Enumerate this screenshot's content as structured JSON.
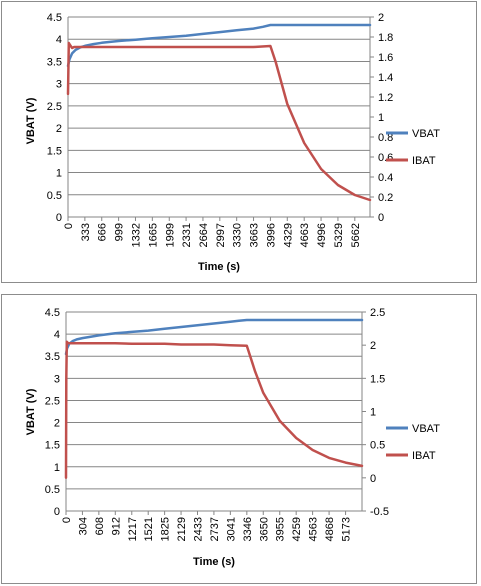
{
  "charts": [
    {
      "xlabel": "Time (s)",
      "ylabel": "VBAT (V)",
      "y_ticks": [
        "0",
        "0.5",
        "1",
        "1.5",
        "2",
        "2.5",
        "3",
        "3.5",
        "4",
        "4.5"
      ],
      "y2_ticks": [
        "0",
        "0.2",
        "0.4",
        "0.6",
        "0.8",
        "1",
        "1.2",
        "1.4",
        "1.6",
        "1.8",
        "2"
      ],
      "x_ticks": [
        "0",
        "333",
        "666",
        "999",
        "1332",
        "1665",
        "1999",
        "2331",
        "2664",
        "2997",
        "3330",
        "3663",
        "3996",
        "4329",
        "4663",
        "4996",
        "5329",
        "5662"
      ],
      "legend": [
        "VBAT",
        "IBAT"
      ]
    },
    {
      "xlabel": "Time (s)",
      "ylabel": "VBAT (V)",
      "y_ticks": [
        "0",
        "0.5",
        "1",
        "1.5",
        "2",
        "2.5",
        "3",
        "3.5",
        "4",
        "4.5"
      ],
      "y2_ticks": [
        "-0.5",
        "0",
        "0.5",
        "1",
        "1.5",
        "2",
        "2.5"
      ],
      "x_ticks": [
        "0",
        "304",
        "608",
        "912",
        "1217",
        "1521",
        "1825",
        "2129",
        "2433",
        "2737",
        "3041",
        "3346",
        "3650",
        "3955",
        "4259",
        "4563",
        "4868",
        "5173"
      ],
      "legend": [
        "VBAT",
        "IBAT"
      ]
    }
  ],
  "chart_data": [
    {
      "type": "line",
      "xlabel": "Time (s)",
      "ylabel": "VBAT (V)",
      "ylim": [
        0,
        4.5
      ],
      "y2lim": [
        0,
        2
      ],
      "xlim": [
        0,
        5962
      ],
      "grid": true,
      "legend_position": "right",
      "colors": {
        "VBAT": "#4f81bd",
        "IBAT": "#c0504d"
      },
      "series": [
        {
          "name": "VBAT",
          "axis": "left",
          "x": [
            0,
            30,
            80,
            150,
            250,
            333,
            500,
            666,
            999,
            1332,
            1665,
            1999,
            2331,
            2664,
            2997,
            3330,
            3663,
            3850,
            3996,
            4329,
            4663,
            4996,
            5329,
            5662,
            5962
          ],
          "y": [
            3.4,
            3.55,
            3.68,
            3.76,
            3.82,
            3.85,
            3.89,
            3.92,
            3.96,
            3.99,
            4.02,
            4.05,
            4.08,
            4.12,
            4.16,
            4.2,
            4.24,
            4.28,
            4.32,
            4.32,
            4.32,
            4.32,
            4.32,
            4.32,
            4.32
          ]
        },
        {
          "name": "IBAT",
          "axis": "right",
          "x": [
            0,
            15,
            40,
            80,
            120,
            333,
            666,
            999,
            1332,
            1665,
            1999,
            2331,
            2664,
            2997,
            3330,
            3663,
            3996,
            4100,
            4329,
            4663,
            4996,
            5329,
            5662,
            5962
          ],
          "y": [
            1.23,
            1.74,
            1.72,
            1.69,
            1.7,
            1.7,
            1.7,
            1.7,
            1.7,
            1.7,
            1.7,
            1.7,
            1.7,
            1.7,
            1.7,
            1.7,
            1.71,
            1.55,
            1.13,
            0.74,
            0.48,
            0.32,
            0.22,
            0.17
          ]
        }
      ]
    },
    {
      "type": "line",
      "xlabel": "Time (s)",
      "ylabel": "VBAT (V)",
      "ylim": [
        0,
        4.5
      ],
      "y2lim": [
        -0.5,
        2.5
      ],
      "xlim": [
        0,
        5477
      ],
      "grid": true,
      "legend_position": "right",
      "colors": {
        "VBAT": "#4f81bd",
        "IBAT": "#c0504d"
      },
      "series": [
        {
          "name": "VBAT",
          "axis": "left",
          "x": [
            0,
            20,
            60,
            120,
            200,
            304,
            608,
            912,
            1217,
            1521,
            1825,
            2129,
            2433,
            2737,
            3041,
            3200,
            3346,
            3650,
            3955,
            4259,
            4563,
            4868,
            5173,
            5477
          ],
          "y": [
            3.55,
            3.68,
            3.78,
            3.84,
            3.88,
            3.91,
            3.97,
            4.02,
            4.05,
            4.08,
            4.12,
            4.16,
            4.2,
            4.24,
            4.28,
            4.3,
            4.32,
            4.32,
            4.32,
            4.32,
            4.32,
            4.32,
            4.32,
            4.32
          ]
        },
        {
          "name": "IBAT",
          "axis": "right",
          "x": [
            0,
            5,
            15,
            40,
            304,
            608,
            912,
            1217,
            1521,
            1825,
            2129,
            2433,
            2737,
            3041,
            3346,
            3500,
            3650,
            3955,
            4259,
            4563,
            4868,
            5173,
            5477
          ],
          "y": [
            0.0,
            1.5,
            2.05,
            2.03,
            2.03,
            2.03,
            2.03,
            2.02,
            2.02,
            2.02,
            2.01,
            2.01,
            2.01,
            2.0,
            1.99,
            1.6,
            1.28,
            0.86,
            0.6,
            0.42,
            0.3,
            0.23,
            0.18
          ]
        }
      ]
    }
  ]
}
